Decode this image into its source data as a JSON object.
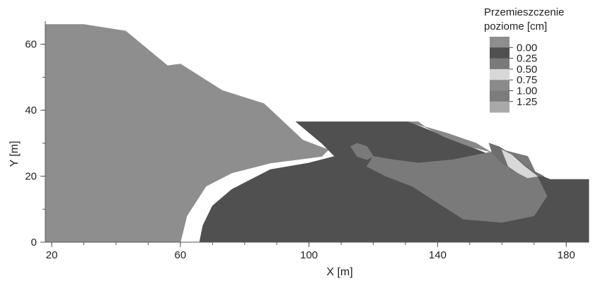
{
  "chart_data": {
    "type": "contour",
    "title": "",
    "xlabel": "X [m]",
    "ylabel": "Y [m]",
    "xlim": [
      18,
      187
    ],
    "ylim": [
      0,
      67
    ],
    "xticks": [
      20,
      60,
      100,
      140,
      180
    ],
    "yticks": [
      0,
      20,
      40,
      60
    ],
    "grid": false,
    "legend": {
      "placement": "top-right",
      "title_lines": [
        "Przemieszczenie",
        "poziome [cm]"
      ],
      "levels": [
        "0.00",
        "0.25",
        "0.50",
        "0.75",
        "1.00",
        "1.25"
      ],
      "colors": [
        "#8e8e8e",
        "#505050",
        "#7a7a7a",
        "#d8d8d8",
        "#8a8a8a",
        "#7c7c7c",
        "#a9a9a9"
      ]
    },
    "regions": [
      {
        "name": "slope-light",
        "color": "#8e8e8e",
        "points": [
          [
            18,
            0
          ],
          [
            18,
            66
          ],
          [
            30,
            66
          ],
          [
            43,
            64
          ],
          [
            56,
            53.5
          ],
          [
            60,
            54
          ],
          [
            73,
            46
          ],
          [
            86,
            42
          ],
          [
            98,
            31
          ],
          [
            106,
            28
          ],
          [
            104,
            26
          ],
          [
            96,
            25
          ],
          [
            88,
            24
          ],
          [
            76,
            21
          ],
          [
            68,
            17
          ],
          [
            62,
            8
          ],
          [
            60,
            0
          ]
        ]
      },
      {
        "name": "berm-dark",
        "color": "#505050",
        "points": [
          [
            96,
            36.5
          ],
          [
            131,
            36.5
          ],
          [
            175,
            19
          ],
          [
            187,
            19
          ],
          [
            187,
            0
          ],
          [
            66,
            0
          ],
          [
            67,
            5
          ],
          [
            70,
            11
          ],
          [
            76,
            16
          ],
          [
            88,
            22
          ],
          [
            100,
            24
          ],
          [
            108,
            26
          ],
          [
            104,
            30
          ]
        ]
      },
      {
        "name": "lower-mid-zone",
        "color": "#7a7a7a",
        "points": [
          [
            120,
            26
          ],
          [
            126,
            25
          ],
          [
            134,
            24
          ],
          [
            145,
            25
          ],
          [
            160,
            28
          ],
          [
            168,
            26
          ],
          [
            171,
            20
          ],
          [
            174,
            14
          ],
          [
            170,
            8
          ],
          [
            160,
            6
          ],
          [
            148,
            7
          ],
          [
            140,
            12
          ],
          [
            132,
            17
          ],
          [
            124,
            20
          ],
          [
            118,
            23
          ]
        ]
      },
      {
        "name": "upper-mid-zone",
        "color": "#888888",
        "points": [
          [
            134,
            36.5
          ],
          [
            131,
            36.5
          ],
          [
            136,
            35
          ],
          [
            143,
            33
          ],
          [
            152,
            30
          ],
          [
            157,
            27
          ],
          [
            160,
            26
          ],
          [
            163,
            26
          ],
          [
            158,
            27
          ],
          [
            150,
            29
          ],
          [
            142,
            32
          ],
          [
            136,
            35
          ]
        ]
      },
      {
        "name": "small-island",
        "color": "#7a7a7a",
        "points": [
          [
            113,
            29
          ],
          [
            115,
            30
          ],
          [
            118,
            29
          ],
          [
            120,
            26
          ],
          [
            118,
            25
          ],
          [
            115,
            26
          ]
        ]
      },
      {
        "name": "slip-band",
        "color": "#6e6e6e",
        "points": [
          [
            156,
            30
          ],
          [
            159,
            29
          ],
          [
            164,
            26
          ],
          [
            169,
            22
          ],
          [
            173,
            20
          ],
          [
            168,
            20
          ],
          [
            163,
            22
          ],
          [
            160,
            24
          ],
          [
            157,
            27
          ]
        ]
      },
      {
        "name": "peak-zone",
        "color": "#d8d8d8",
        "points": [
          [
            160,
            28
          ],
          [
            163,
            26.5
          ],
          [
            167,
            23
          ],
          [
            171,
            20
          ],
          [
            168,
            19.5
          ],
          [
            165,
            21
          ],
          [
            162,
            23
          ],
          [
            161,
            25.5
          ]
        ]
      }
    ]
  }
}
